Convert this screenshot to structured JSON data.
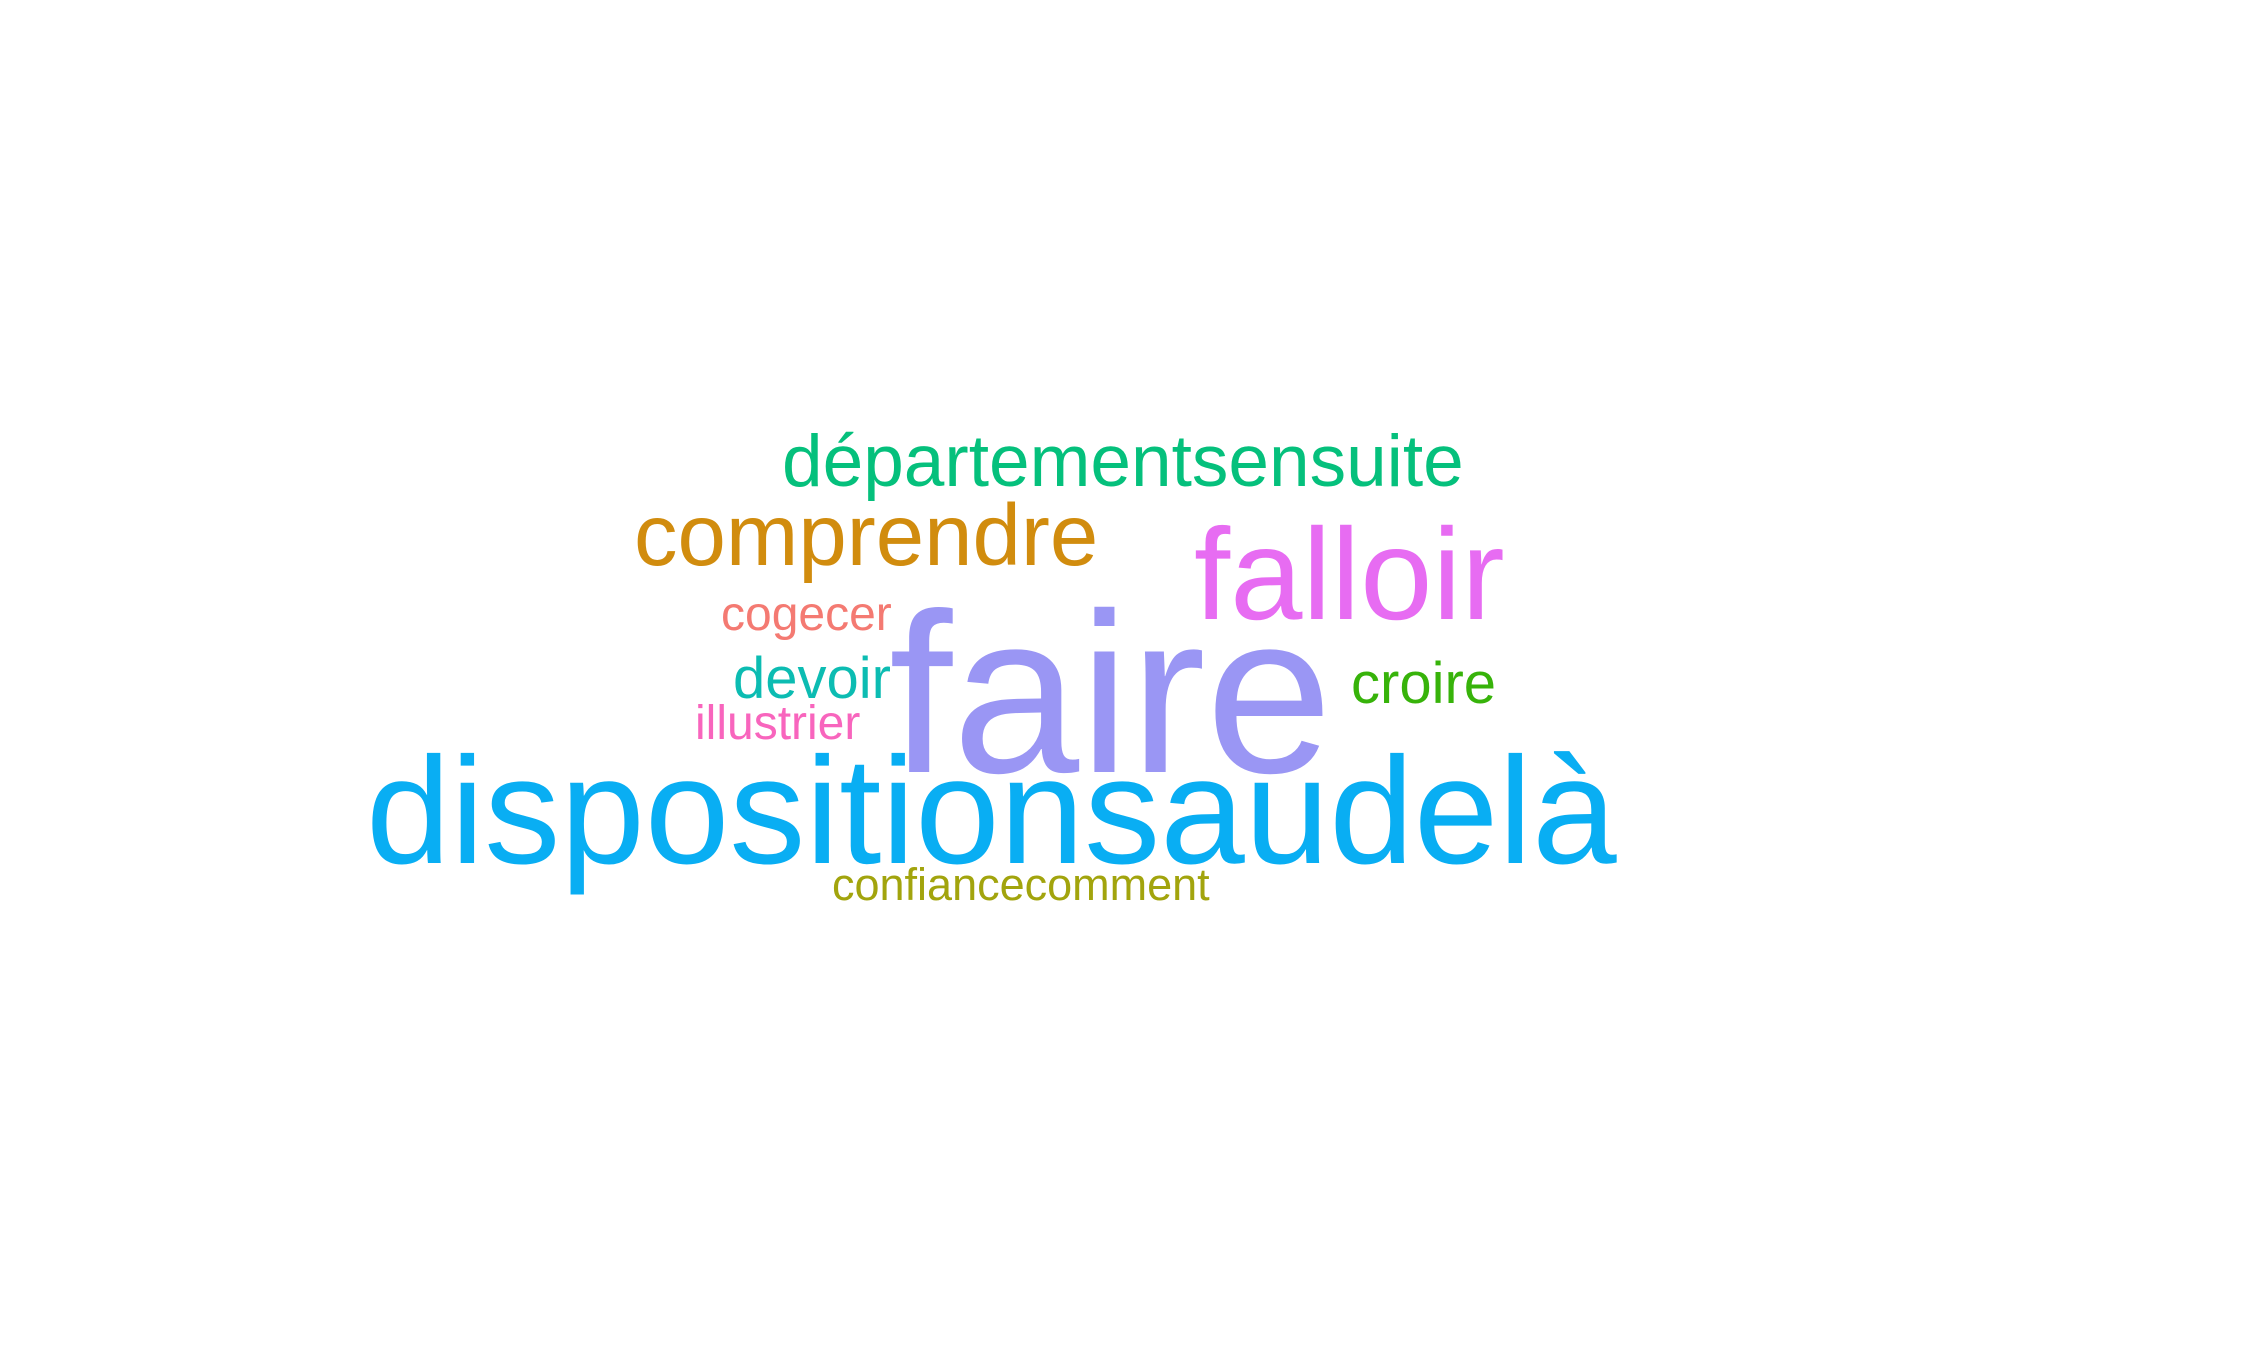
{
  "words": [
    {
      "text": "faire",
      "color": "#9a96f4"
    },
    {
      "text": "dispositionsaudelà",
      "color": "#09aef3"
    },
    {
      "text": "falloir",
      "color": "#e76cf2"
    },
    {
      "text": "comprendre",
      "color": "#d18c0e"
    },
    {
      "text": "départementsensuite",
      "color": "#05c07c"
    },
    {
      "text": "devoir",
      "color": "#0cbcb2"
    },
    {
      "text": "croire",
      "color": "#37b30a"
    },
    {
      "text": "cogecer",
      "color": "#f47a72"
    },
    {
      "text": "illustrier",
      "color": "#f865bd"
    },
    {
      "text": "confiancecomment",
      "color": "#a2a40d"
    }
  ]
}
